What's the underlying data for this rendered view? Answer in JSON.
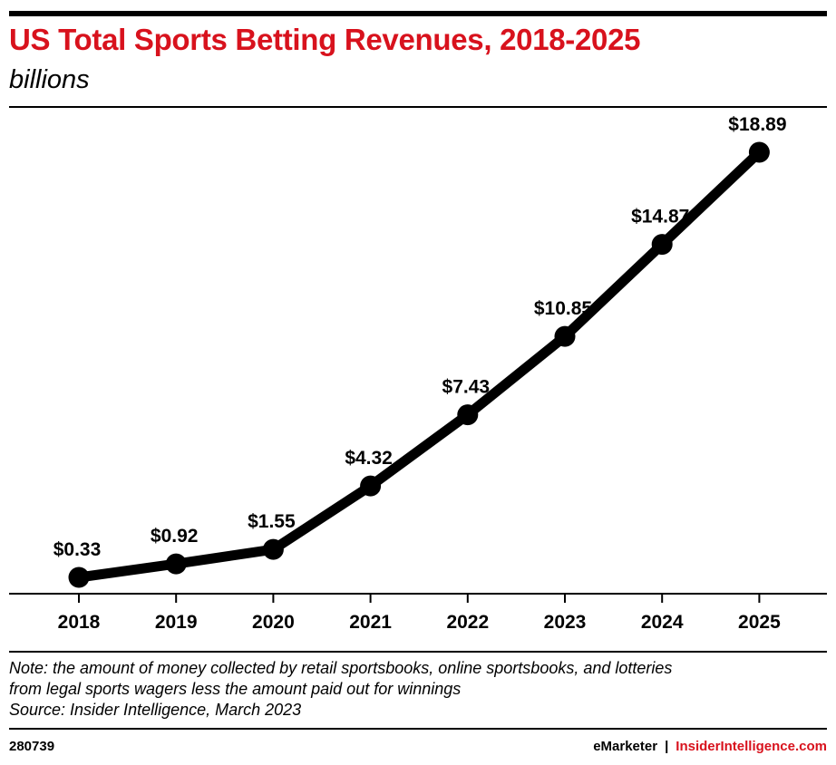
{
  "colors": {
    "title": "#d8121d",
    "line": "#000000",
    "brand_red": "#d8121d"
  },
  "header": {
    "title": "US Total Sports Betting Revenues, 2018-2025",
    "subtitle": "billions"
  },
  "chart_data": {
    "type": "line",
    "title": "US Total Sports Betting Revenues, 2018-2025",
    "subtitle": "billions",
    "xlabel": "",
    "ylabel": "",
    "categories": [
      "2018",
      "2019",
      "2020",
      "2021",
      "2022",
      "2023",
      "2024",
      "2025"
    ],
    "values": [
      0.33,
      0.92,
      1.55,
      4.32,
      7.43,
      10.85,
      14.87,
      18.89
    ],
    "value_labels": [
      "$0.33",
      "$0.92",
      "$1.55",
      "$4.32",
      "$7.43",
      "$10.85",
      "$14.87",
      "$18.89"
    ],
    "ylim": [
      0,
      20
    ],
    "grid": false,
    "legend": "none",
    "markers": true
  },
  "footer": {
    "note_lines": [
      "Note: the amount of money collected by retail sportsbooks, online sportsbooks, and lotteries",
      "from legal sports wagers less the amount paid out for winnings",
      "Source: Insider Intelligence, March 2023"
    ],
    "chart_id": "280739",
    "brand_left": "eMarketer",
    "brand_separator": "|",
    "brand_right": "InsiderIntelligence.com"
  }
}
